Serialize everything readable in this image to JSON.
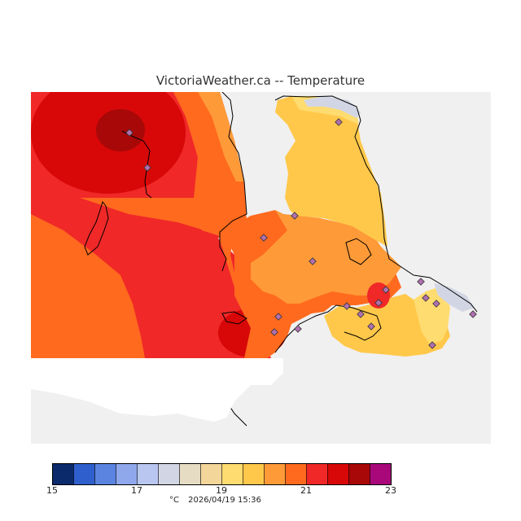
{
  "title": "VictoriaWeather.ca -- Temperature",
  "legend": {
    "ticks": [
      "15",
      "17",
      "19",
      "21",
      "23"
    ],
    "colors": [
      "#0a2a6b",
      "#2f5fcc",
      "#5a84e0",
      "#8fa8ec",
      "#b8c6f0",
      "#d2d6e4",
      "#e6dcc4",
      "#f2d69a",
      "#ffdc70",
      "#ffc84a",
      "#ff9a38",
      "#ff6a1e",
      "#f02828",
      "#d80808",
      "#a80808",
      "#a8087a"
    ]
  },
  "unit": "°C",
  "timestamp": "2026/04/19 15:36",
  "palette": {
    "background": "#ffffff",
    "offmap": "#f0f0f0",
    "coast": "#000000",
    "station_marker": "#b070b0"
  }
}
